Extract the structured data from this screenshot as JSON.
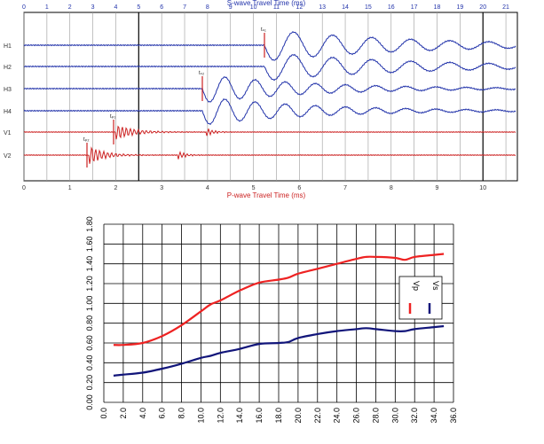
{
  "chart_data": [
    {
      "type": "line",
      "top_axis": {
        "title": "S-wave Travel Time (ms)",
        "ticks": [
          "0",
          "1",
          "2",
          "3",
          "4",
          "5",
          "6",
          "7",
          "8",
          "9",
          "10",
          "11",
          "12",
          "13",
          "14",
          "15",
          "16",
          "17",
          "18",
          "19",
          "20",
          "21"
        ],
        "color": "#2233aa"
      },
      "bottom_axis": {
        "title": "P-wave Travel Time (ms)",
        "ticks": [
          "0",
          "1",
          "2",
          "3",
          "4",
          "5",
          "6",
          "7",
          "8",
          "9",
          "10"
        ],
        "color": "#cc2222"
      },
      "traces": [
        {
          "label": "H1",
          "color": "#2233aa",
          "pick": "tₛ₁"
        },
        {
          "label": "H2",
          "color": "#2233aa",
          "pick": ""
        },
        {
          "label": "H3",
          "color": "#2233aa",
          "pick": "tₛ₂"
        },
        {
          "label": "H4",
          "color": "#2233aa",
          "pick": ""
        },
        {
          "label": "V1",
          "color": "#cc2222",
          "pick": "tₚ₁"
        },
        {
          "label": "V2",
          "color": "#cc2222",
          "pick": "tₚ₂"
        }
      ]
    },
    {
      "type": "line",
      "x": [
        1,
        2,
        4,
        6,
        8,
        10,
        11,
        12,
        14,
        16,
        18,
        19,
        20,
        22,
        24,
        26,
        27,
        28,
        30,
        31,
        32,
        34,
        35
      ],
      "xticks": [
        "0.0",
        "2.0",
        "4.0",
        "6.0",
        "8.0",
        "10.0",
        "12.0",
        "14.0",
        "16.0",
        "18.0",
        "20.0",
        "22.0",
        "24.0",
        "26.0",
        "28.0",
        "30.0",
        "32.0",
        "34.0",
        "36.0"
      ],
      "yticks": [
        "0.00",
        "0.20",
        "0.40",
        "0.60",
        "0.80",
        "1.00",
        "1.20",
        "1.40",
        "1.60",
        "1.80"
      ],
      "xlim": [
        0,
        36
      ],
      "ylim": [
        0,
        1.8
      ],
      "grid": true,
      "legend_position": "right",
      "series": [
        {
          "name": "Vp",
          "color": "#ee2222",
          "values": [
            0.58,
            0.58,
            0.6,
            0.67,
            0.78,
            0.92,
            0.99,
            1.03,
            1.13,
            1.21,
            1.24,
            1.26,
            1.3,
            1.35,
            1.4,
            1.45,
            1.47,
            1.47,
            1.46,
            1.44,
            1.47,
            1.49,
            1.5
          ]
        },
        {
          "name": "Vs",
          "color": "#11157a",
          "values": [
            0.27,
            0.28,
            0.3,
            0.34,
            0.39,
            0.45,
            0.47,
            0.5,
            0.54,
            0.59,
            0.6,
            0.61,
            0.65,
            0.69,
            0.72,
            0.74,
            0.75,
            0.74,
            0.72,
            0.72,
            0.74,
            0.76,
            0.77
          ]
        }
      ]
    }
  ]
}
